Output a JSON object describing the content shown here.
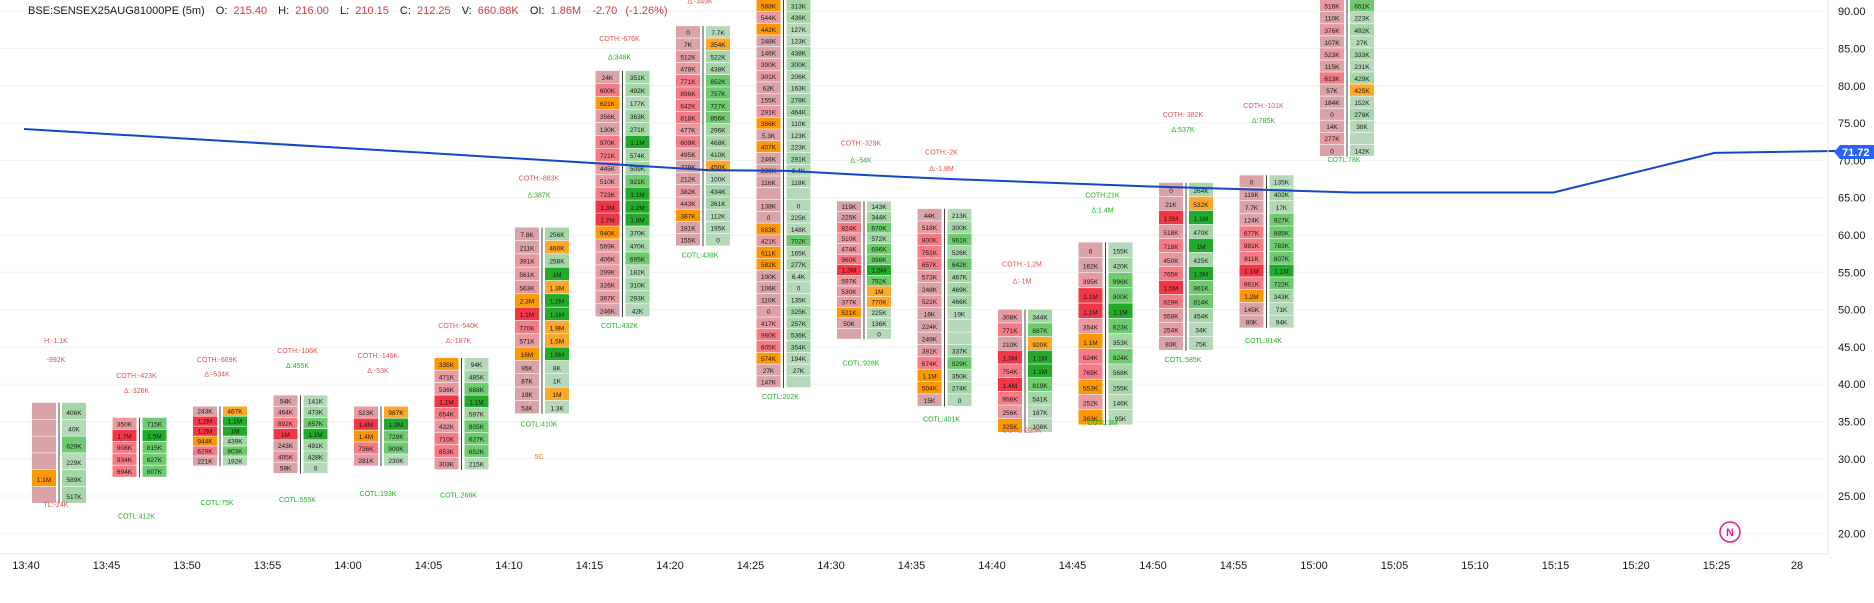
{
  "header": {
    "symbol": "BSE:SENSEX25AUG81000PE (5m)",
    "o_label": "O:",
    "o": "215.40",
    "h_label": "H:",
    "h": "216.00",
    "l_label": "L:",
    "l": "210.15",
    "c_label": "C:",
    "c": "212.25",
    "v_label": "V:",
    "v": "660.88K",
    "oi_label": "OI:",
    "oi": "1.86M",
    "chg": "-2.70",
    "chg_pct": "(-1.26%)"
  },
  "last_price": "71.72",
  "logo_letter": "N",
  "colors": {
    "vwap": "#1546c8",
    "red": "#f23645",
    "green": "#22ab2a",
    "orange": "#ff9800",
    "badge": "#2962ff"
  },
  "chart_data": {
    "type": "footprint",
    "y_axis": {
      "range": [
        17.5,
        91.5
      ],
      "ticks": [
        "90.00",
        "85.00",
        "80.00",
        "75.00",
        "70.00",
        "65.00",
        "60.00",
        "55.00",
        "50.00",
        "45.00",
        "40.00",
        "35.00",
        "30.00",
        "25.00",
        "20.00"
      ],
      "position": "right"
    },
    "x_axis": {
      "ticks": [
        "13:40",
        "13:45",
        "13:50",
        "13:55",
        "14:00",
        "14:05",
        "14:10",
        "14:15",
        "14:20",
        "14:25",
        "14:30",
        "14:35",
        "14:40",
        "14:45",
        "14:50",
        "14:55",
        "15:00",
        "15:05",
        "15:10",
        "15:15",
        "15:20",
        "15:25",
        "28"
      ]
    },
    "vwap": {
      "t": [
        0,
        50,
        85,
        95,
        105,
        115,
        140,
        165,
        190,
        210,
        250
      ],
      "y": [
        74.2,
        71.0,
        68.7,
        68.6,
        68.0,
        67.5,
        66.5,
        65.7,
        65.7,
        71.0,
        71.7
      ]
    },
    "candles": [
      {
        "t": 0,
        "hi": 37.5,
        "lo": 24.0,
        "bid": [
          "",
          "",
          "",
          "",
          "1.1M",
          ""
        ],
        "ask": [
          "406K",
          "40K",
          "629K",
          "229K",
          "589K",
          "517K"
        ],
        "annot": [
          {
            "text": "H:-1.1K",
            "y": 45.5,
            "c": "red"
          },
          {
            "text": "-992K",
            "y": 43.0,
            "c": "red"
          },
          {
            "text": "TL:-24K",
            "y": 23.5,
            "c": "red"
          }
        ]
      },
      {
        "t": 10,
        "hi": 35.5,
        "lo": 27.5,
        "bid": [
          "350K",
          "1.7M",
          "908K",
          "934K",
          "694K"
        ],
        "ask": [
          "715K",
          "1.5M",
          "815K",
          "627K",
          "607K"
        ],
        "annot": [
          {
            "text": "COTH:-423K",
            "y": 40.8,
            "c": "red"
          },
          {
            "text": "Δ:-326K",
            "y": 38.8,
            "c": "red"
          },
          {
            "text": "COTL:412K",
            "y": 22.0,
            "c": "green"
          }
        ]
      },
      {
        "t": 20,
        "hi": 37.0,
        "lo": 29.0,
        "bid": [
          "243K",
          "1.2M",
          "1.2M",
          "944K",
          "629K",
          "221K"
        ],
        "ask": [
          "467K",
          "1.1M",
          "1M",
          "439K",
          "803K",
          "192K"
        ],
        "annot": [
          {
            "text": "COTH:-669K",
            "y": 43.0,
            "c": "red"
          },
          {
            "text": "Δ:-534K",
            "y": 41.0,
            "c": "red"
          },
          {
            "text": "COTL:75K",
            "y": 23.8,
            "c": "green"
          }
        ]
      },
      {
        "t": 30,
        "hi": 38.5,
        "lo": 28.0,
        "bid": [
          "54K",
          "464K",
          "892K",
          "1M",
          "243K",
          "495K",
          "59K"
        ],
        "ask": [
          "141K",
          "473K",
          "857K",
          "1.1M",
          "491K",
          "428K",
          "0"
        ],
        "annot": [
          {
            "text": "COTH:-106K",
            "y": 44.2,
            "c": "red"
          },
          {
            "text": "Δ:455K",
            "y": 42.2,
            "c": "green"
          },
          {
            "text": "COTL:555K",
            "y": 24.2,
            "c": "green"
          }
        ]
      },
      {
        "t": 40,
        "hi": 37.0,
        "lo": 29.0,
        "bid": [
          "523K",
          "1.4M",
          "1.4M",
          "736K",
          "281K"
        ],
        "ask": [
          "987K",
          "1.3M",
          "729K",
          "900K",
          "230K"
        ],
        "annot": [
          {
            "text": "COTH:-145K",
            "y": 43.5,
            "c": "red"
          },
          {
            "text": "Δ:-53K",
            "y": 41.5,
            "c": "red"
          },
          {
            "text": "COTL:193K",
            "y": 25.0,
            "c": "green"
          }
        ]
      },
      {
        "t": 50,
        "hi": 43.5,
        "lo": 28.5,
        "bid": [
          "335K",
          "471K",
          "536K",
          "1.1M",
          "654K",
          "432K",
          "710K",
          "853K",
          "303K"
        ],
        "ask": [
          "94K",
          "485K",
          "688K",
          "1.1M",
          "597K",
          "805K",
          "627K",
          "652K",
          "215K"
        ],
        "annot": [
          {
            "text": "COTH:-540K",
            "y": 47.5,
            "c": "red"
          },
          {
            "text": "Δ:-187K",
            "y": 45.5,
            "c": "red"
          },
          {
            "text": "COTL:268K",
            "y": 24.8,
            "c": "green"
          }
        ]
      },
      {
        "t": 60,
        "hi": 61.0,
        "lo": 36.0,
        "bid": [
          "7.8K",
          "211K",
          "391K",
          "561K",
          "563K",
          "2.3M",
          "1.1M",
          "770K",
          "571K",
          "16M",
          "95K",
          "87K",
          "19K",
          "53K"
        ],
        "ask": [
          "256K",
          "460K",
          "258K",
          "1M",
          "1.3M",
          "1.2M",
          "1.1M",
          "1.9M",
          "1.5M",
          "1.8M",
          "8K",
          "1K",
          "1M",
          "1.3K"
        ],
        "annot": [
          {
            "text": "COTH:-883K",
            "y": 67.3,
            "c": "red"
          },
          {
            "text": "Δ:387K",
            "y": 65.0,
            "c": "green"
          },
          {
            "text": "COTL:410K",
            "y": 34.3,
            "c": "green"
          },
          {
            "text": "5C",
            "y": 30.0,
            "c": "orange"
          }
        ]
      },
      {
        "t": 70,
        "hi": 82.0,
        "lo": 49.0,
        "bid": [
          "24K",
          "600K",
          "621K",
          "356K",
          "130K",
          "970K",
          "721K",
          "445K",
          "510K",
          "723K",
          "1.3M",
          "1.7M",
          "940K",
          "569K",
          "406K",
          "299K",
          "326K",
          "367K",
          "246K"
        ],
        "ask": [
          "351K",
          "492K",
          "177K",
          "363K",
          "271K",
          "1.1M",
          "574K",
          "509K",
          "921K",
          "1.1M",
          "1.2M",
          "1.8M",
          "370K",
          "470K",
          "695K",
          "182K",
          "310K",
          "293K",
          "42K"
        ],
        "annot": [
          {
            "text": "COTH:-676K",
            "y": 86.0,
            "c": "red"
          },
          {
            "text": "Δ:348K",
            "y": 83.5,
            "c": "green"
          },
          {
            "text": "COTL:432K",
            "y": 47.5,
            "c": "green"
          }
        ]
      },
      {
        "t": 80,
        "hi": 88.0,
        "lo": 58.5,
        "bid": [
          "0",
          "7K",
          "512K",
          "478K",
          "771K",
          "896K",
          "642K",
          "818K",
          "477K",
          "609K",
          "495K",
          "229K",
          "212K",
          "382K",
          "443K",
          "387K",
          "181K",
          "155K"
        ],
        "ask": [
          "7.7K",
          "354K",
          "522K",
          "438K",
          "852K",
          "757K",
          "727K",
          "856K",
          "296K",
          "468K",
          "410K",
          "450K",
          "100K",
          "434K",
          "261K",
          "112K",
          "195K",
          "0"
        ],
        "annot": [
          {
            "text": "Δ:-349K",
            "y": 91.0,
            "c": "red"
          },
          {
            "text": "COTL:438K",
            "y": 57.0,
            "c": "green"
          }
        ]
      },
      {
        "t": 90,
        "hi": 91.5,
        "lo": 39.5,
        "bid": [
          "588K",
          "544K",
          "442K",
          "248K",
          "146K",
          "390K",
          "301K",
          "62K",
          "155K",
          "291K",
          "386K",
          "5.3K",
          "407K",
          "246K",
          "236K",
          "116K",
          "",
          "138K",
          "0",
          "683K",
          "421K",
          "611K",
          "582K",
          "100K",
          "106K",
          "110K",
          "0",
          "417K",
          "960K",
          "605K",
          "574K",
          "27K",
          "147K"
        ],
        "ask": [
          "313K",
          "436K",
          "127K",
          "123K",
          "438K",
          "300K",
          "206K",
          "163K",
          "278K",
          "464K",
          "110K",
          "123K",
          "223K",
          "291K",
          "9.4K",
          "118K",
          "",
          "0",
          "225K",
          "148K",
          "702K",
          "165K",
          "277K",
          "6.4K",
          "0",
          "135K",
          "325K",
          "257K",
          "536K",
          "354K",
          "194K",
          "27K",
          ""
        ],
        "annot": [
          {
            "text": "COTL:202K",
            "y": 38.0,
            "c": "green"
          }
        ]
      },
      {
        "t": 100,
        "hi": 64.5,
        "lo": 46.0,
        "bid": [
          "119K",
          "225K",
          "824K",
          "510K",
          "474K",
          "960K",
          "1.3M",
          "597K",
          "530K",
          "377K",
          "521K",
          "50K"
        ],
        "ask": [
          "143K",
          "344K",
          "670K",
          "572K",
          "696K",
          "998K",
          "1.5M",
          "792K",
          "1M",
          "770K",
          "225K",
          "136K",
          "0"
        ],
        "annot": [
          {
            "text": "COTH:-329K",
            "y": 72.0,
            "c": "red"
          },
          {
            "text": "Δ:-54K",
            "y": 69.7,
            "c": "green"
          },
          {
            "text": "COTL:928K",
            "y": 42.5,
            "c": "green"
          }
        ]
      },
      {
        "t": 110,
        "hi": 63.5,
        "lo": 37.0,
        "bid": [
          "44K",
          "518K",
          "800K",
          "751K",
          "657K",
          "573K",
          "248K",
          "522K",
          "16K",
          "224K",
          "249K",
          "381K",
          "674K",
          "1.1M",
          "504K",
          "15K"
        ],
        "ask": [
          "213K",
          "300K",
          "961K",
          "526K",
          "642K",
          "467K",
          "469K",
          "466K",
          "19K",
          "",
          "",
          "337K",
          "929K",
          "350K",
          "274K",
          "0"
        ],
        "annot": [
          {
            "text": "COTH:-2K",
            "y": 70.8,
            "c": "red"
          },
          {
            "text": "Δ:-1.8M",
            "y": 68.6,
            "c": "red"
          },
          {
            "text": "COTL:401K",
            "y": 35.0,
            "c": "green"
          }
        ]
      },
      {
        "t": 120,
        "hi": 50.0,
        "lo": 33.5,
        "bid": [
          "308K",
          "771K",
          "210K",
          "1.3M",
          "754K",
          "1.4M",
          "956K",
          "256K",
          "325K"
        ],
        "ask": [
          "344K",
          "687K",
          "920K",
          "1.1M",
          "1.1M",
          "819K",
          "541K",
          "187K",
          "108K"
        ],
        "annot": [
          {
            "text": "COTH:-1.2M",
            "y": 55.8,
            "c": "red"
          },
          {
            "text": "Δ:-1M",
            "y": 53.5,
            "c": "red"
          },
          {
            "text": "COTL:-225K",
            "y": 33.5,
            "c": "red"
          }
        ]
      },
      {
        "t": 130,
        "hi": 59.0,
        "lo": 34.5,
        "bid": [
          "0",
          "162K",
          "395K",
          "1.1M",
          "1.1M",
          "354K",
          "1.1M",
          "624K",
          "769K",
          "553K",
          "252K",
          "363K"
        ],
        "ask": [
          "155K",
          "420K",
          "996K",
          "900K",
          "1.1M",
          "623K",
          "353K",
          "924K",
          "568K",
          "255K",
          "146K",
          "95K"
        ],
        "annot": [
          {
            "text": "COTH:21K",
            "y": 65.0,
            "c": "green"
          },
          {
            "text": "Δ:1.4M",
            "y": 63.0,
            "c": "green"
          },
          {
            "text": "COTL:3M",
            "y": 34.5,
            "c": "green"
          }
        ]
      },
      {
        "t": 140,
        "hi": 67.0,
        "lo": 44.5,
        "bid": [
          "0",
          "21K",
          "1.5M",
          "518K",
          "718K",
          "450K",
          "765K",
          "1.5M",
          "829K",
          "558K",
          "254K",
          "83K"
        ],
        "ask": [
          "264K",
          "532K",
          "1.1M",
          "470K",
          "1M",
          "425K",
          "1.3M",
          "961K",
          "814K",
          "454K",
          "34K",
          "75K"
        ],
        "annot": [
          {
            "text": "COTH:-382K",
            "y": 75.8,
            "c": "red"
          },
          {
            "text": "Δ:537K",
            "y": 73.8,
            "c": "green"
          },
          {
            "text": "COTL:585K",
            "y": 43.0,
            "c": "green"
          }
        ]
      },
      {
        "t": 150,
        "hi": 68.0,
        "lo": 47.5,
        "bid": [
          "0",
          "119K",
          "7.7K",
          "124K",
          "677K",
          "981K",
          "811K",
          "1.1M",
          "661K",
          "1.2M",
          "145K",
          "80K"
        ],
        "ask": [
          "135K",
          "402K",
          "17K",
          "927K",
          "885K",
          "783K",
          "807K",
          "1.1M",
          "722K",
          "343K",
          "71K",
          "94K"
        ],
        "annot": [
          {
            "text": "COTH:-101K",
            "y": 77.0,
            "c": "red"
          },
          {
            "text": "Δ:785K",
            "y": 75.0,
            "c": "green"
          },
          {
            "text": "COTL:814K",
            "y": 45.5,
            "c": "green"
          }
        ]
      },
      {
        "t": 160,
        "hi": 91.5,
        "lo": 70.5,
        "bid": [
          "516K",
          "110K",
          "376K",
          "107K",
          "523K",
          "115K",
          "613K",
          "57K",
          "184K",
          "0",
          "14K",
          "277K",
          "0"
        ],
        "ask": [
          "651K",
          "223K",
          "492K",
          "27K",
          "333K",
          "231K",
          "429K",
          "425K",
          "152K",
          "278K",
          "38K",
          "",
          "142K"
        ],
        "annot": [
          {
            "text": "COTL:78K",
            "y": 69.8,
            "c": "green"
          }
        ]
      }
    ]
  }
}
